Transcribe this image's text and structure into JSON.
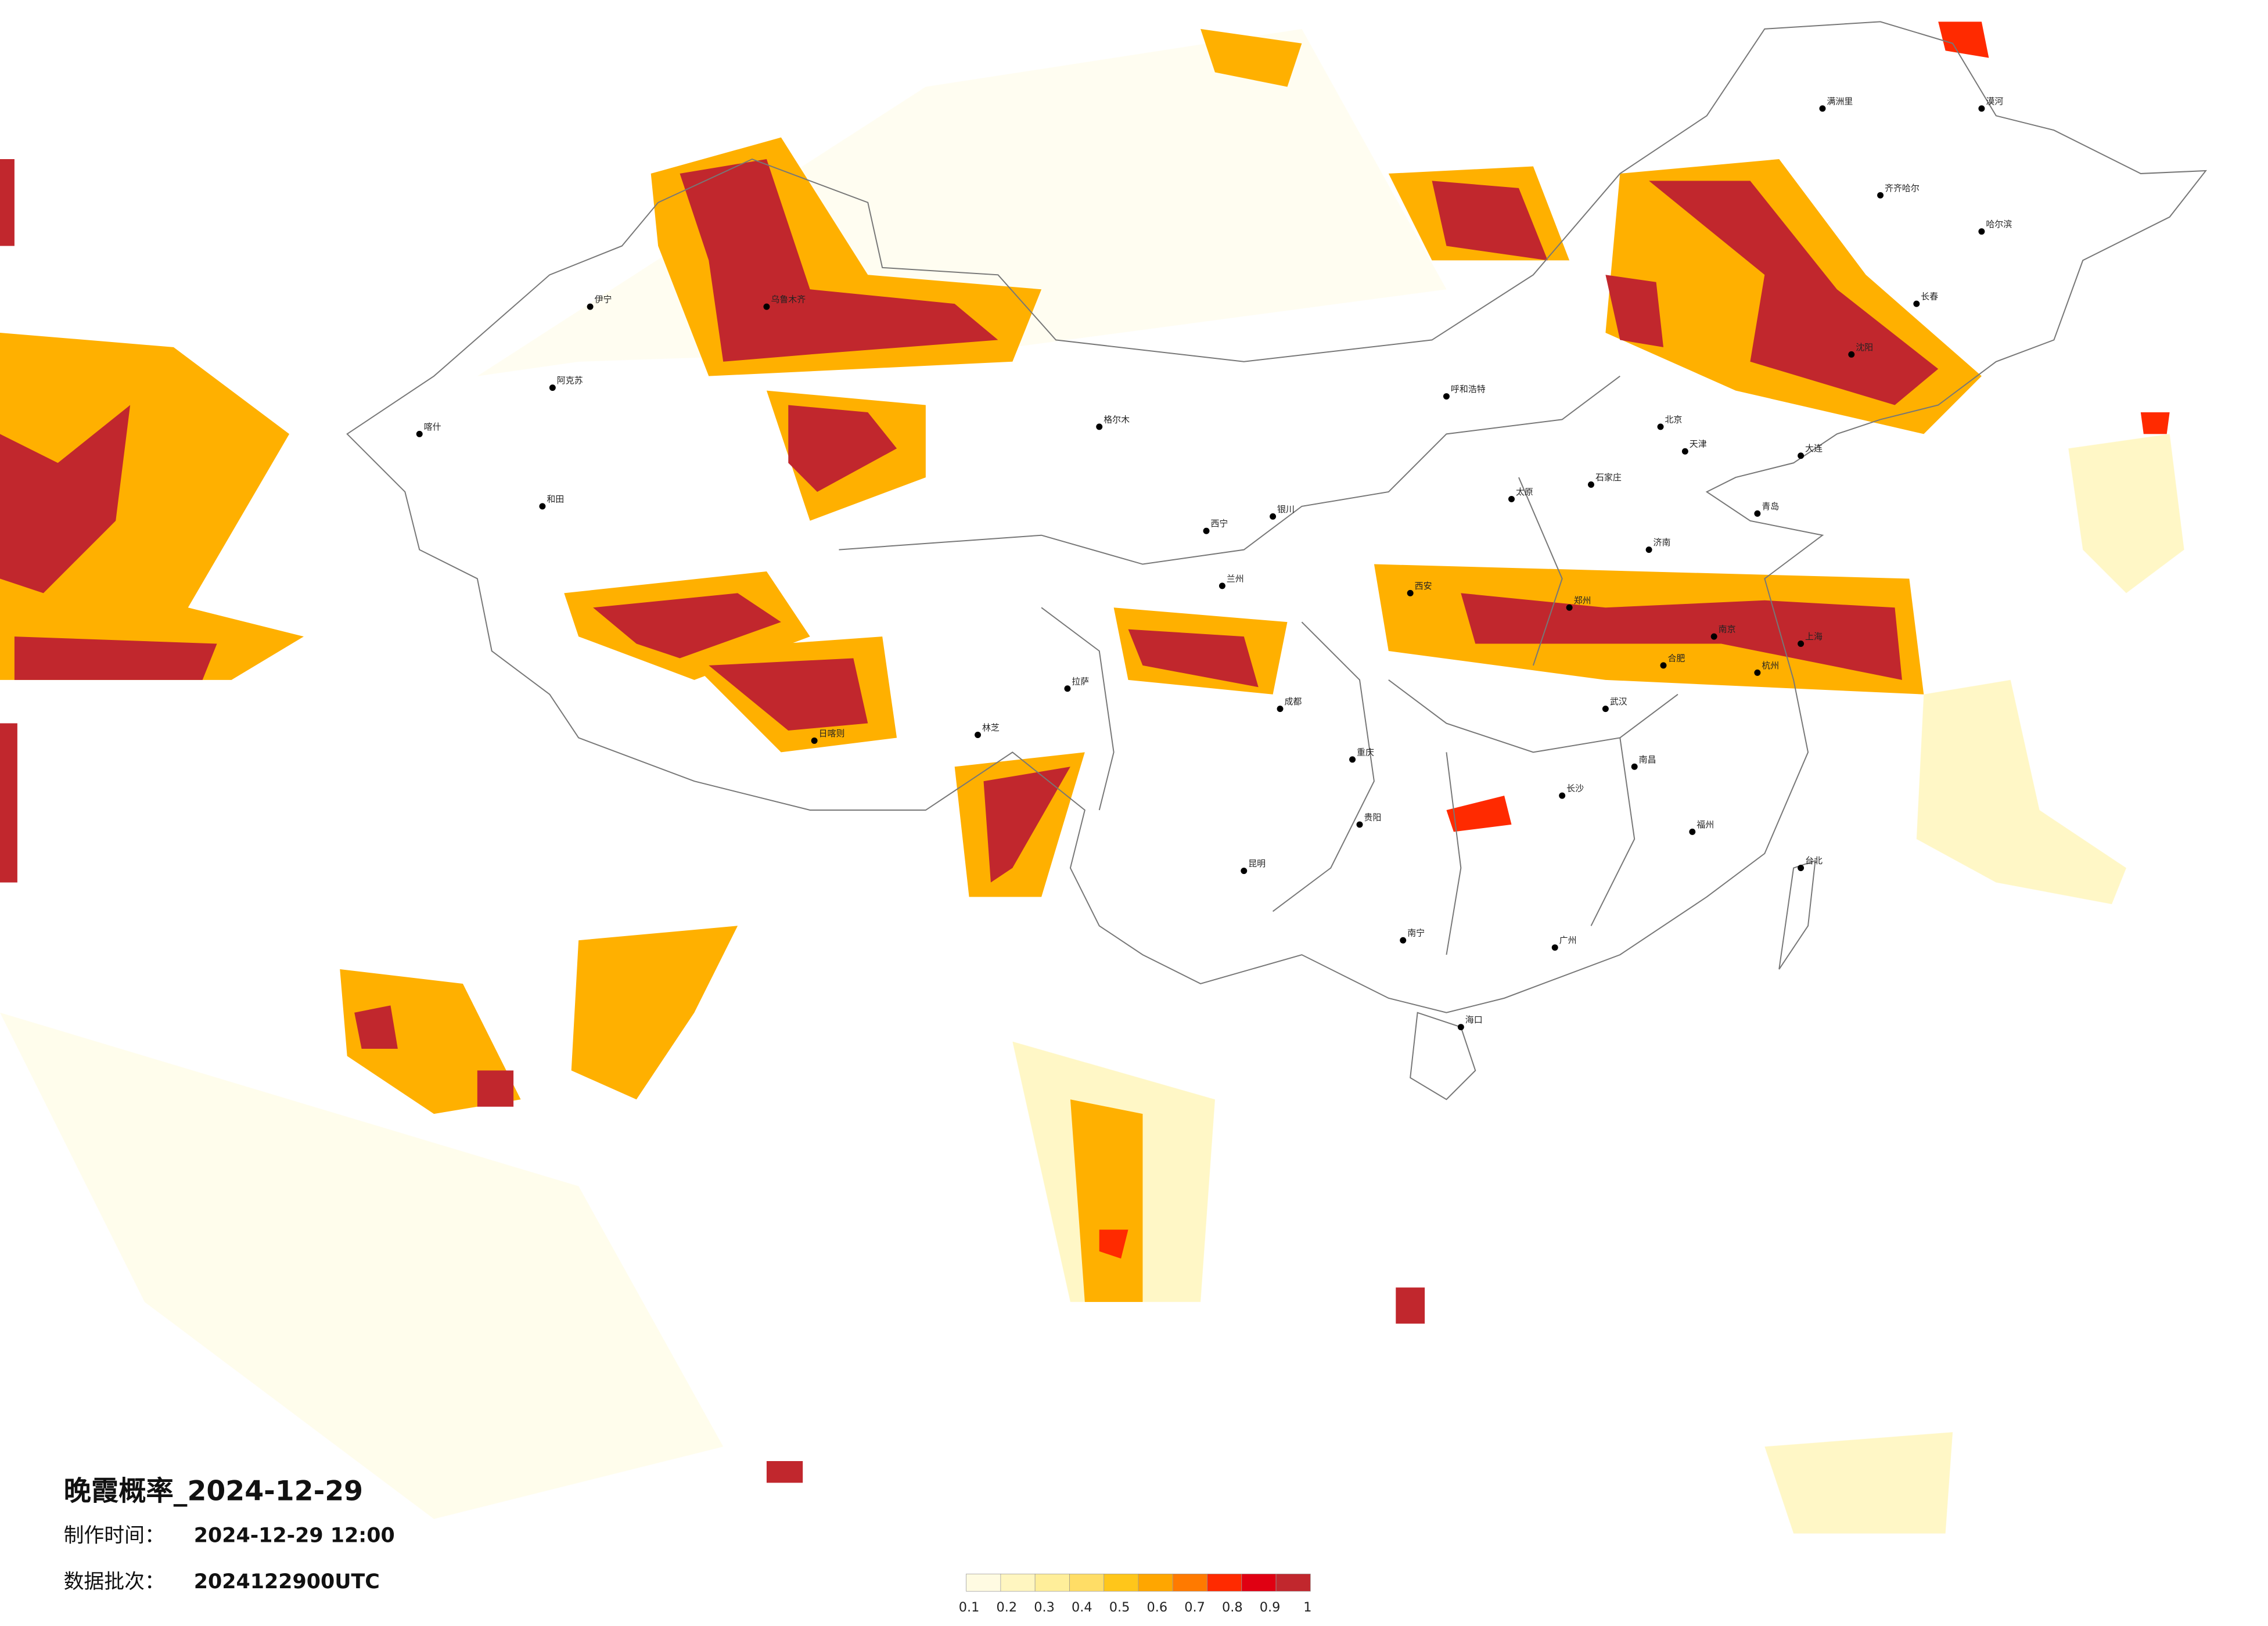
{
  "map": {
    "title": "晚霞概率_2024-12-29",
    "made_label": "制作时间：",
    "made_time": "2024-12-29 12:00",
    "batch_label": "数据批次：",
    "batch": "2024122900UTC",
    "colorbar": {
      "ticks": [
        0.1,
        0.2,
        0.3,
        0.4,
        0.5,
        0.6,
        0.7,
        0.8,
        0.9,
        1
      ],
      "colors": [
        "#fffbe2",
        "#fff6c0",
        "#ffee9a",
        "#ffdd66",
        "#ffc61a",
        "#ffa600",
        "#ff7a00",
        "#ff2a00",
        "#e00012",
        "#c1272d"
      ]
    },
    "cities": [
      "乌鲁木齐",
      "伊宁",
      "阿克苏",
      "和田",
      "喀什",
      "格尔木",
      "拉萨",
      "日喀则",
      "林芝",
      "西宁",
      "兰州",
      "银川",
      "呼和浩特",
      "北京",
      "天津",
      "石家庄",
      "太原",
      "济南",
      "郑州",
      "西安",
      "成都",
      "重庆",
      "贵阳",
      "昆明",
      "南宁",
      "海口",
      "广州",
      "长沙",
      "武汉",
      "南昌",
      "杭州",
      "上海",
      "南京",
      "合肥",
      "福州",
      "台北",
      "沈阳",
      "长春",
      "哈尔滨",
      "大连",
      "青岛",
      "满洲里",
      "齐齐哈尔",
      "漠河"
    ]
  }
}
